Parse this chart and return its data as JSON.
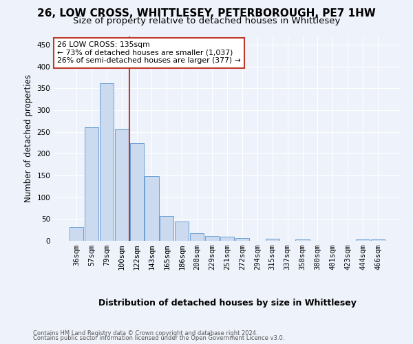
{
  "title": "26, LOW CROSS, WHITTLESEY, PETERBOROUGH, PE7 1HW",
  "subtitle": "Size of property relative to detached houses in Whittlesey",
  "xlabel": "Distribution of detached houses by size in Whittlesey",
  "ylabel": "Number of detached properties",
  "categories": [
    "36sqm",
    "57sqm",
    "79sqm",
    "100sqm",
    "122sqm",
    "143sqm",
    "165sqm",
    "186sqm",
    "208sqm",
    "229sqm",
    "251sqm",
    "272sqm",
    "294sqm",
    "315sqm",
    "337sqm",
    "358sqm",
    "380sqm",
    "401sqm",
    "423sqm",
    "444sqm",
    "466sqm"
  ],
  "values": [
    31,
    260,
    362,
    256,
    224,
    148,
    57,
    44,
    17,
    11,
    10,
    7,
    0,
    5,
    0,
    3,
    0,
    0,
    0,
    3,
    3
  ],
  "bar_color": "#ccdaf0",
  "bar_edge_color": "#6b9fd4",
  "vline_color": "#c0392b",
  "vline_x": 3.5,
  "annotation_text": "26 LOW CROSS: 135sqm\n← 73% of detached houses are smaller (1,037)\n26% of semi-detached houses are larger (377) →",
  "annotation_box_color": "#ffffff",
  "annotation_box_edge_color": "#c0392b",
  "ylim": [
    0,
    470
  ],
  "footer1": "Contains HM Land Registry data © Crown copyright and database right 2024.",
  "footer2": "Contains public sector information licensed under the Open Government Licence v3.0.",
  "bg_color": "#eef2fa",
  "grid_color": "#ffffff",
  "title_fontsize": 11,
  "subtitle_fontsize": 9.5,
  "ylabel_fontsize": 8.5,
  "xlabel_fontsize": 9,
  "tick_fontsize": 7.5,
  "annotation_fontsize": 7.8,
  "footer_fontsize": 6
}
